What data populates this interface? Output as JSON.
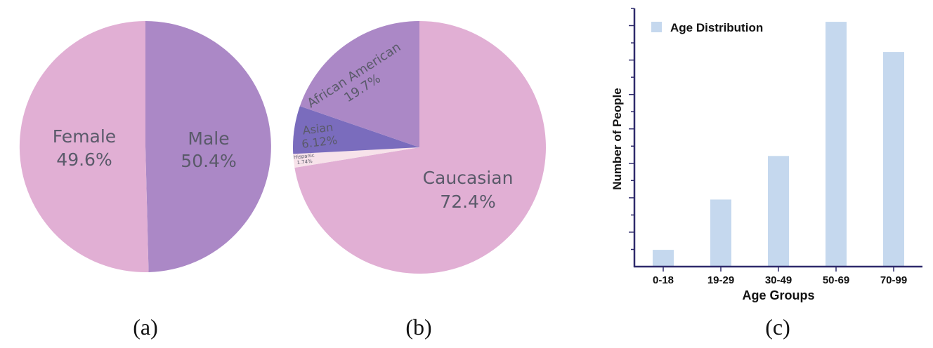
{
  "captions": [
    "(a)",
    "(b)",
    "(c)"
  ],
  "chart_data": [
    {
      "type": "pie",
      "slices": [
        {
          "label": "Female",
          "percent_label": "49.6%",
          "value": 49.6,
          "color": "#ab88c6",
          "text_color": "#5a5a6a"
        },
        {
          "label": "Male",
          "percent_label": "50.4%",
          "value": 50.4,
          "color": "#e1afd4",
          "text_color": "#5a5a6a"
        }
      ]
    },
    {
      "type": "pie",
      "slices": [
        {
          "label": "Caucasian",
          "percent_label": "72.4%",
          "value": 72.4,
          "color": "#e1afd4",
          "text_color": "#5a5a6a"
        },
        {
          "label": "Hispanic",
          "percent_label": "1.74%",
          "value": 1.74,
          "color": "#f7e2ea",
          "text_color": "#5a5a6a"
        },
        {
          "label": "Asian",
          "percent_label": "6.12%",
          "value": 6.12,
          "color": "#7a6cbd",
          "text_color": "#ffffff"
        },
        {
          "label": "African American",
          "percent_label": "19.7%",
          "value": 19.7,
          "color": "#ab88c6",
          "text_color": "#5a5a6a"
        }
      ]
    },
    {
      "type": "bar",
      "categories": [
        "0-18",
        "19-29",
        "30-49",
        "50-69",
        "70-99"
      ],
      "series": [
        {
          "name": "Age Distribution",
          "values": [
            5,
            20,
            33,
            73,
            64
          ],
          "color": "#c5d8ee"
        }
      ],
      "xlabel": "Age Groups",
      "ylabel": "Number of People",
      "ylim": [
        0,
        77
      ],
      "y_tick_labels_shown": false,
      "legend": "top-left",
      "axis_color": "#2e2a6b"
    }
  ]
}
